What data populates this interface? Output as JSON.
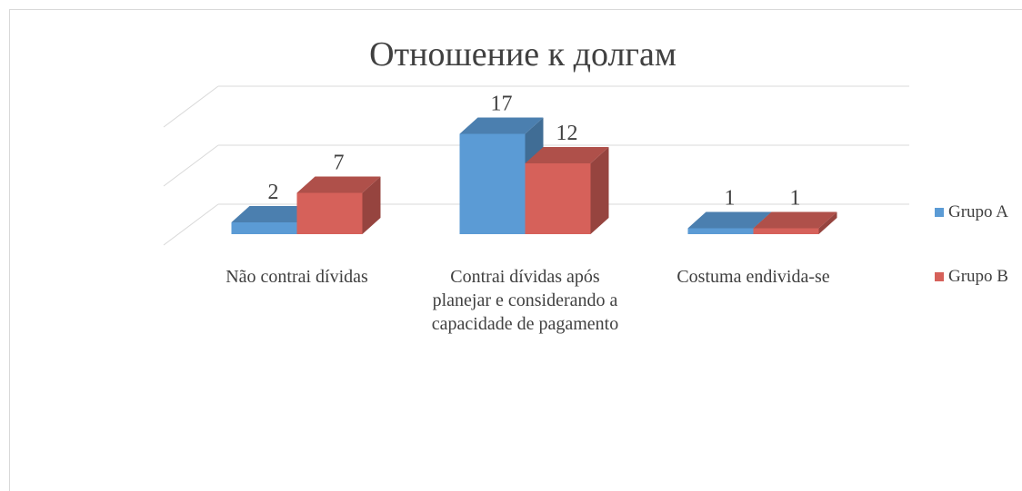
{
  "chart_data": {
    "type": "bar3d",
    "title": "Отношение к долгам",
    "categories": [
      "Não contrai dívidas",
      "Contrai dívidas após planejar e considerando a capacidade de pagamento",
      "Costuma endivida-se"
    ],
    "series": [
      {
        "name": "Grupo A",
        "color": "#5b9bd5",
        "values": [
          2,
          17,
          1
        ]
      },
      {
        "name": "Grupo B",
        "color": "#d6615a",
        "values": [
          7,
          12,
          1
        ]
      }
    ],
    "ylim": [
      0,
      20
    ],
    "yticks": [
      0,
      10,
      20
    ],
    "grid": true,
    "legend": "right"
  }
}
